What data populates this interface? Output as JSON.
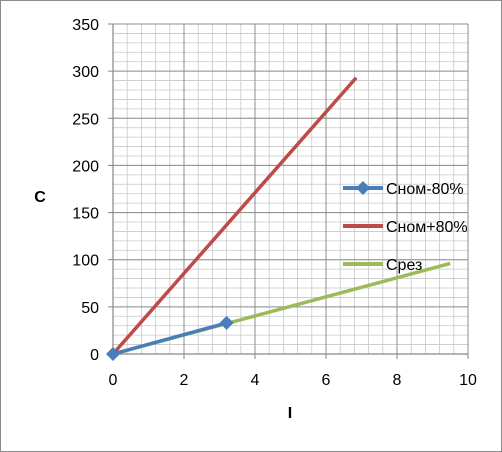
{
  "chart_data": {
    "type": "scatter",
    "title": "",
    "xlabel": "I",
    "ylabel": "C",
    "xlim": [
      0,
      10
    ],
    "ylim": [
      0,
      350
    ],
    "x_ticks": [
      "0",
      "2",
      "4",
      "6",
      "8",
      "10"
    ],
    "y_ticks": [
      "0",
      "50",
      "100",
      "150",
      "200",
      "250",
      "300",
      "350"
    ],
    "grid": true,
    "legend_position": "right",
    "series": [
      {
        "name": "Сном-80%",
        "color": "#4a7ebb",
        "marker": "diamond",
        "points": [
          {
            "x": 0,
            "y": 0
          },
          {
            "x": 3.2,
            "y": 33
          }
        ]
      },
      {
        "name": "Сном+80%",
        "color": "#be4b48",
        "marker": "none",
        "points": [
          {
            "x": 0,
            "y": 0
          },
          {
            "x": 6.85,
            "y": 293
          }
        ]
      },
      {
        "name": "Срез",
        "color": "#9bbb59",
        "marker": "none",
        "points": [
          {
            "x": 0,
            "y": 0
          },
          {
            "x": 9.5,
            "y": 96
          }
        ]
      }
    ]
  }
}
